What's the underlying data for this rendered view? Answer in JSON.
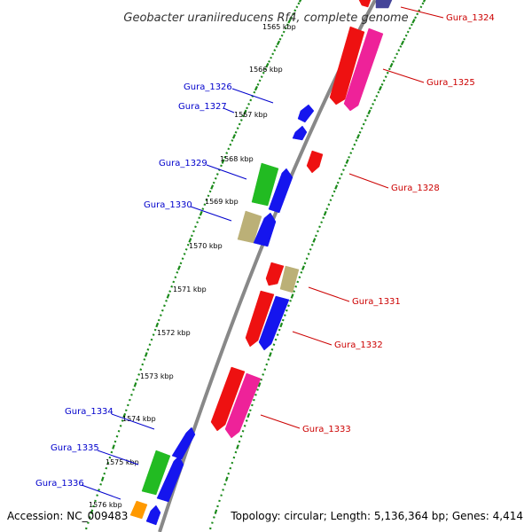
{
  "title": "Geobacter uraniireducens Rf4, complete genome",
  "footer": {
    "accession": "Accession: NC_009483",
    "summary": "Topology: circular; Length: 5,136,364 bp; Genes: 4,414"
  },
  "colors": {
    "backbone": "#888888",
    "tick": "#1a8a1a",
    "left_label": "#0000cc",
    "right_label": "#cc0000",
    "blue": "#1515ee",
    "red": "#ee1111",
    "pink": "#ee2299",
    "green": "#22bb22",
    "khaki": "#bbb077",
    "orange": "#ff9900",
    "purple": "#444499"
  },
  "kbp_labels": [
    "1565 kbp",
    "1566 kbp",
    "1567 kbp",
    "1568 kbp",
    "1569 kbp",
    "1570 kbp",
    "1571 kbp",
    "1572 kbp",
    "1573 kbp",
    "1574 kbp",
    "1575 kbp",
    "1576 kbp"
  ],
  "genes_left": [
    {
      "name": "Gura_1326",
      "color": "blue"
    },
    {
      "name": "Gura_1327",
      "color": "blue"
    },
    {
      "name": "Gura_1329",
      "color": "green"
    },
    {
      "name": "Gura_1330",
      "color": "khaki"
    },
    {
      "name": "Gura_1334",
      "color": "blue"
    },
    {
      "name": "Gura_1335",
      "color": "green"
    },
    {
      "name": "Gura_1336",
      "color": "orange"
    }
  ],
  "genes_right": [
    {
      "name": "Gura_1324",
      "color": "purple"
    },
    {
      "name": "Gura_1325",
      "color": "pink"
    },
    {
      "name": "Gura_1328",
      "color": "red"
    },
    {
      "name": "Gura_1331",
      "color": "khaki"
    },
    {
      "name": "Gura_1332",
      "color": "blue"
    },
    {
      "name": "Gura_1333",
      "color": "pink"
    }
  ]
}
